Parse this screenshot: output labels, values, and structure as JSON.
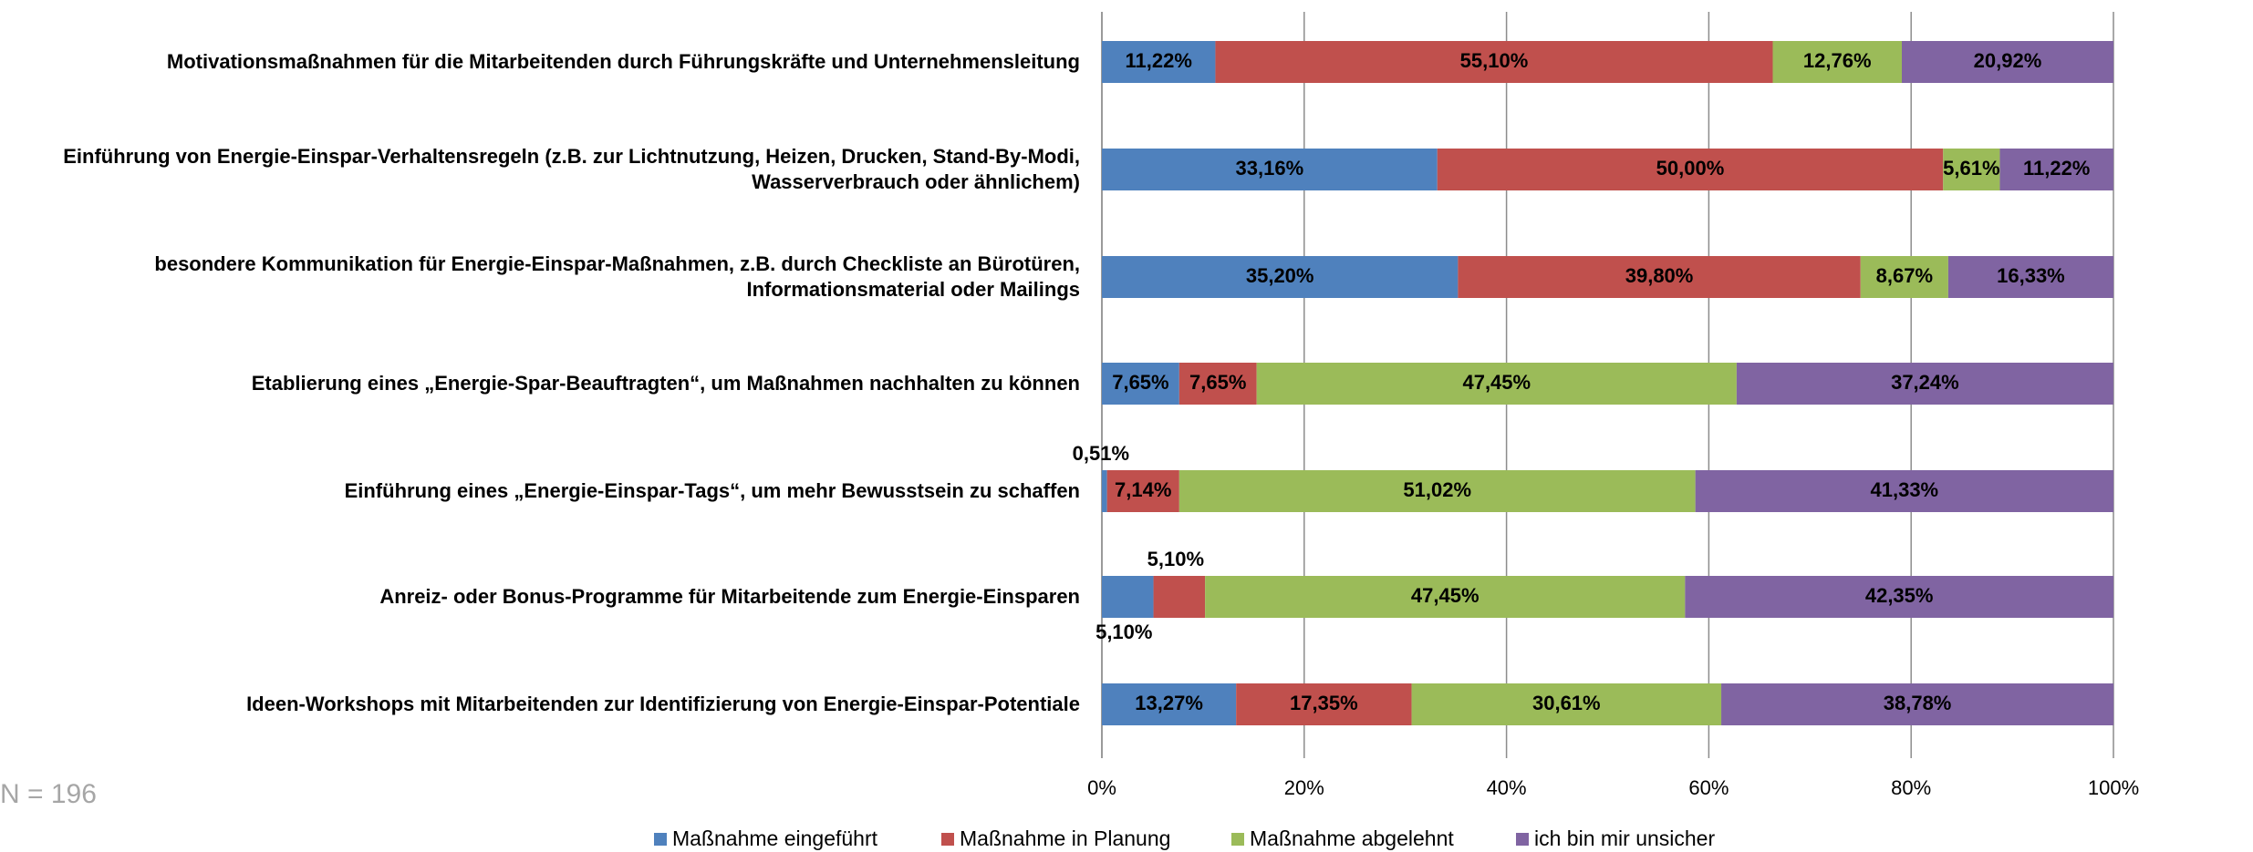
{
  "chart_data": {
    "type": "bar",
    "orientation": "horizontal",
    "stacked": true,
    "note": "N = 196",
    "categories": [
      "Motivationsmaßnahmen für die Mitarbeitenden durch Führungskräfte und Unternehmensleitung",
      "Einführung von Energie-Einspar-Verhaltensregeln (z.B. zur Lichtnutzung, Heizen, Drucken, Stand-By-Modi, Wasserverbrauch oder ähnlichem)",
      "besondere Kommunikation für Energie-Einspar-Maßnahmen, z.B. durch Checkliste an Bürotüren, Informationsmaterial oder Mailings",
      "Etablierung eines „Energie-Spar-Beauftragten“, um Maßnahmen nachhalten zu können",
      "Einführung eines „Energie-Einspar-Tags“, um mehr Bewusstsein zu schaffen",
      "Anreiz- oder Bonus-Programme für Mitarbeitende zum Energie-Einsparen",
      "Ideen-Workshops mit Mitarbeitenden zur Identifizierung von Energie-Einspar-Potentiale"
    ],
    "series": [
      {
        "name": "Maßnahme eingeführt",
        "color": "#4f81bd",
        "values": [
          11.22,
          33.16,
          35.2,
          7.65,
          0.51,
          5.1,
          13.27
        ],
        "value_labels": [
          "11,22%",
          "33,16%",
          "35,20%",
          "7,65%",
          "0,51%",
          "5,10%",
          "13,27%"
        ]
      },
      {
        "name": "Maßnahme in Planung",
        "color": "#c0504d",
        "values": [
          55.1,
          50.0,
          39.8,
          7.65,
          7.14,
          5.1,
          17.35
        ],
        "value_labels": [
          "55,10%",
          "50,00%",
          "39,80%",
          "7,65%",
          "7,14%",
          "5,10%",
          "17,35%"
        ]
      },
      {
        "name": "Maßnahme abgelehnt",
        "color": "#9bbb59",
        "values": [
          12.76,
          5.61,
          8.67,
          47.45,
          51.02,
          47.45,
          30.61
        ],
        "value_labels": [
          "12,76%",
          "5,61%",
          "8,67%",
          "47,45%",
          "51,02%",
          "47,45%",
          "30,61%"
        ]
      },
      {
        "name": "ich bin mir unsicher",
        "color": "#8064a2",
        "values": [
          20.92,
          11.22,
          16.33,
          37.24,
          41.33,
          42.35,
          38.78
        ],
        "value_labels": [
          "20,92%",
          "11,22%",
          "16,33%",
          "37,24%",
          "41,33%",
          "42,35%",
          "38,78%"
        ]
      }
    ],
    "xlim": [
      0,
      100
    ],
    "xticks": [
      {
        "value": 0,
        "label": "0%"
      },
      {
        "value": 20,
        "label": "20%"
      },
      {
        "value": 40,
        "label": "40%"
      },
      {
        "value": 60,
        "label": "60%"
      },
      {
        "value": 80,
        "label": "80%"
      },
      {
        "value": 100,
        "label": "100%"
      }
    ],
    "grid": true,
    "legend": "bottom"
  }
}
